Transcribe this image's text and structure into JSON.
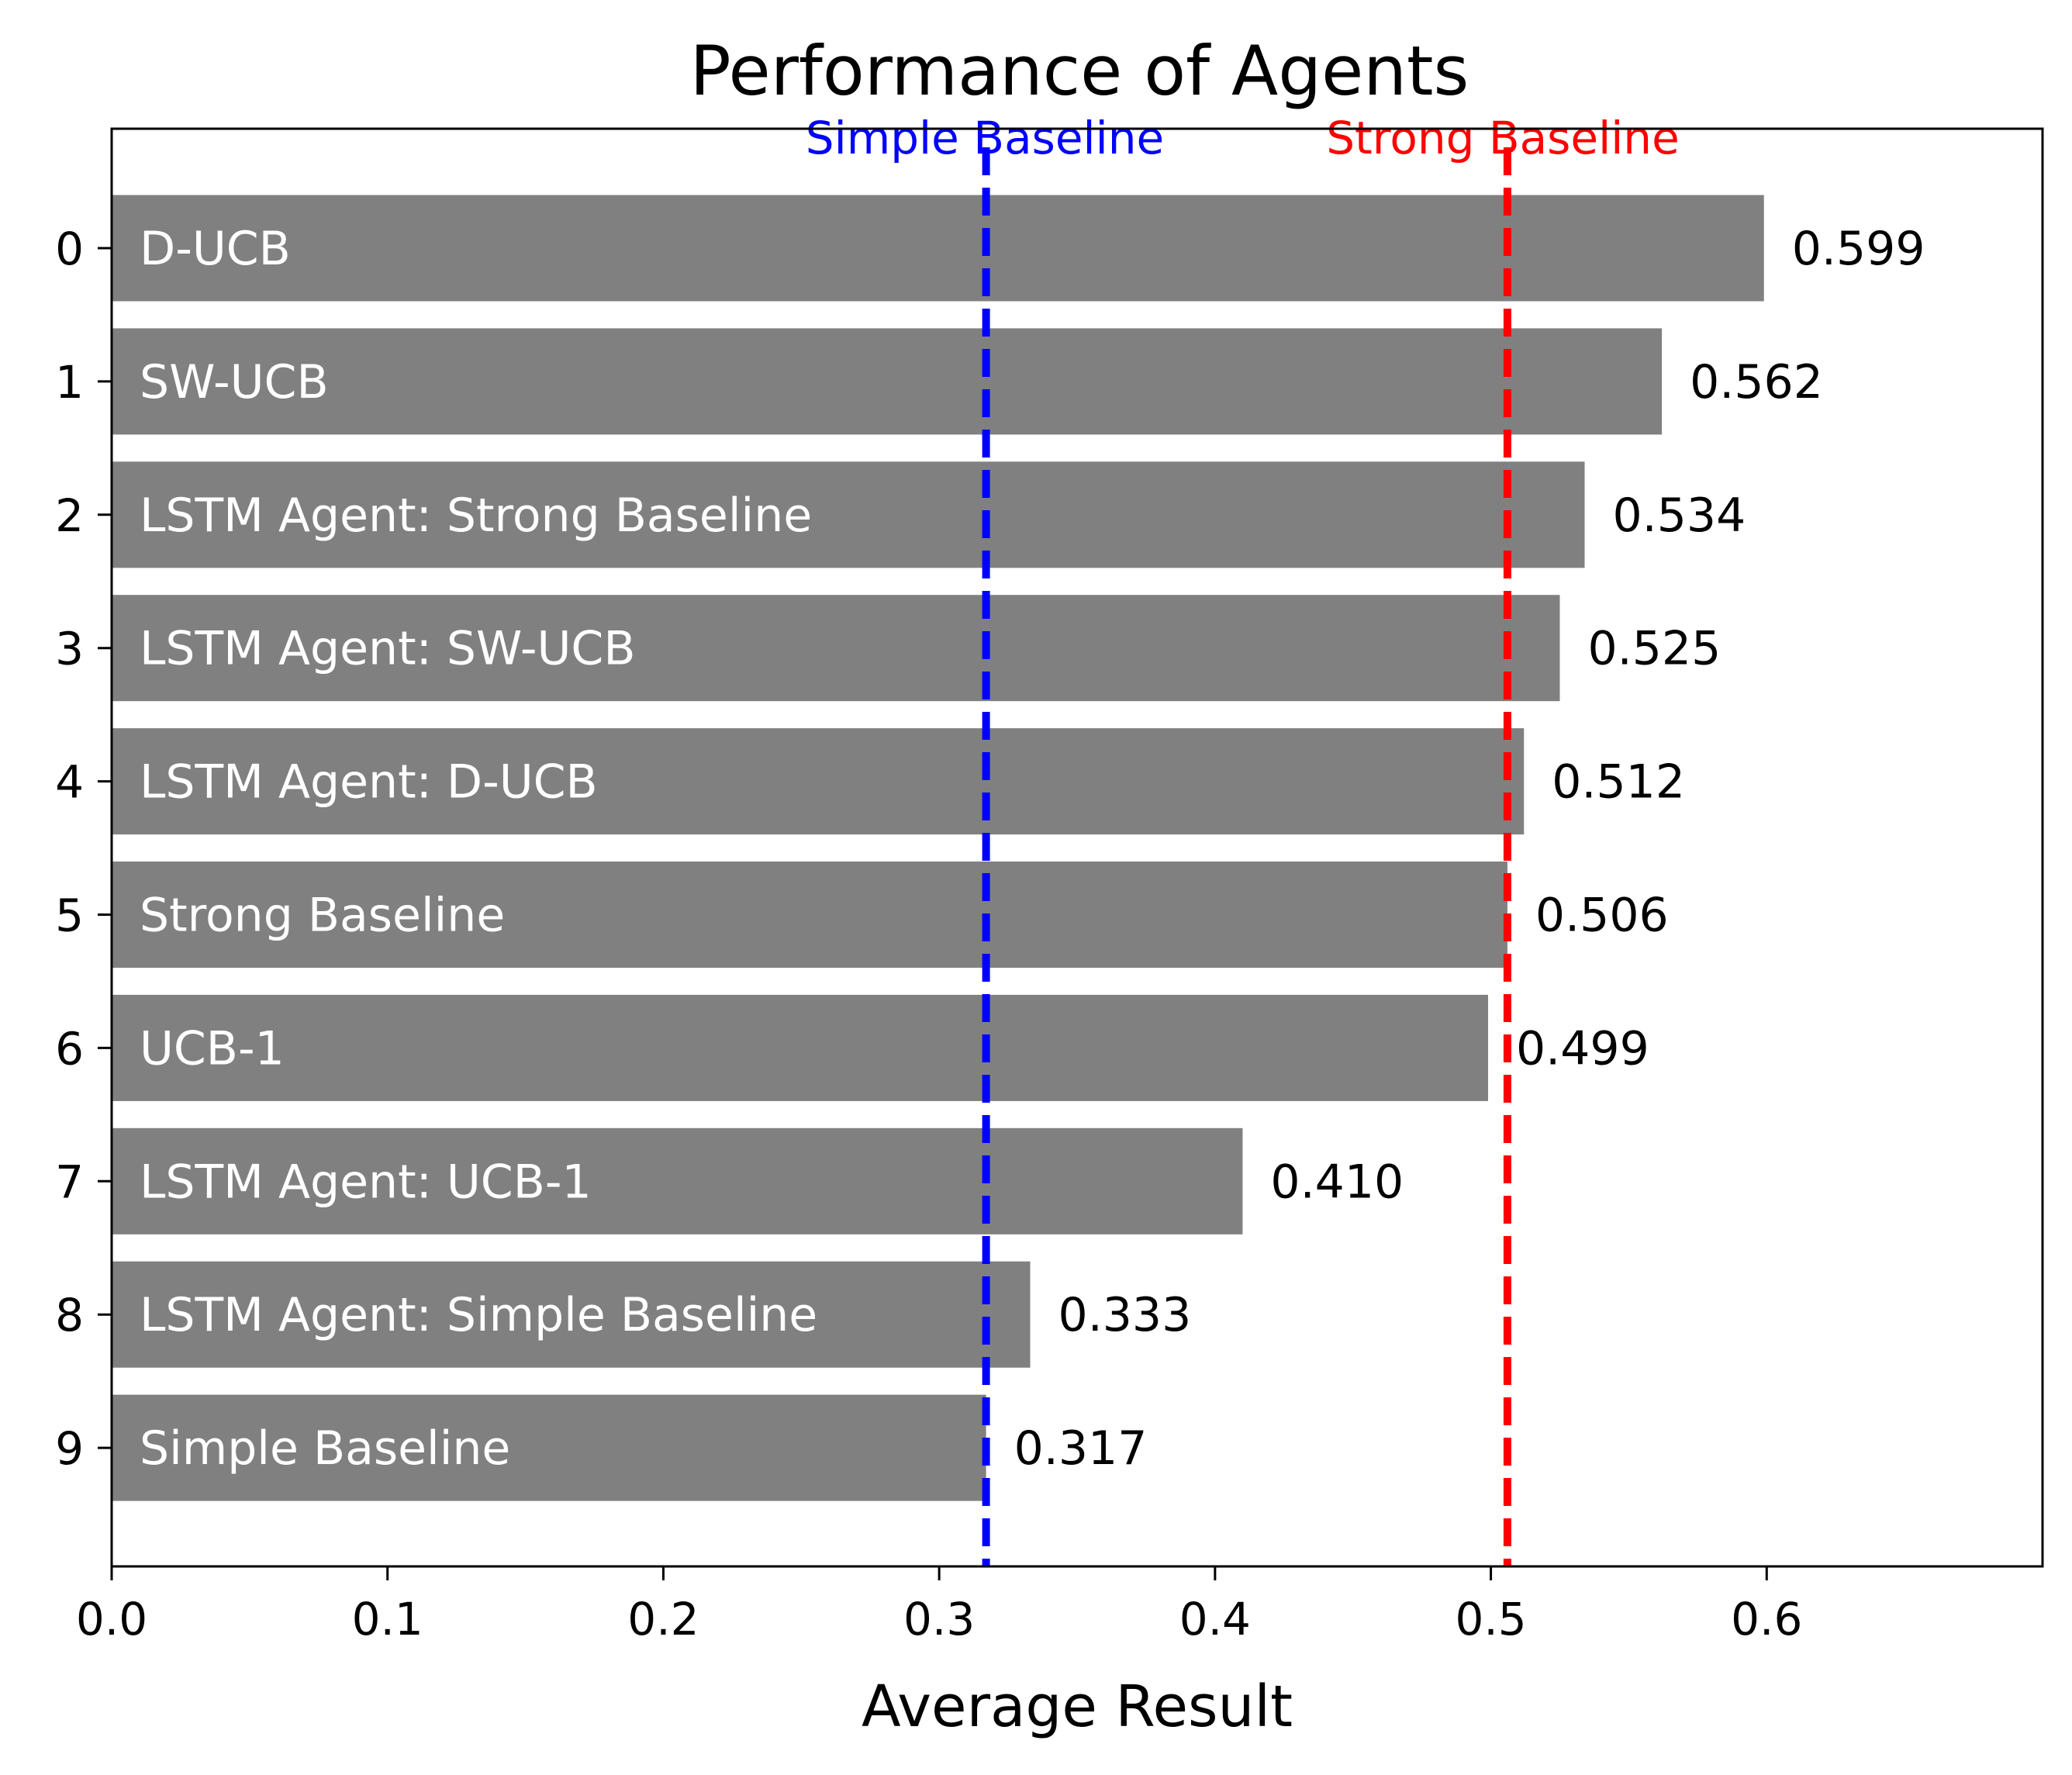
{
  "chart_data": {
    "type": "bar",
    "orientation": "horizontal",
    "title": "Performance of Agents",
    "xlabel": "Average Result",
    "ylabel": "",
    "xlim": [
      0,
      0.7
    ],
    "x_ticks": [
      "0.0",
      "0.1",
      "0.2",
      "0.3",
      "0.4",
      "0.5",
      "0.6"
    ],
    "y_ticks": [
      "0",
      "1",
      "2",
      "3",
      "4",
      "5",
      "6",
      "7",
      "8",
      "9"
    ],
    "categories": [
      "D-UCB",
      "SW-UCB",
      "LSTM Agent: Strong Baseline",
      "LSTM Agent: SW-UCB",
      "LSTM Agent: D-UCB",
      "Strong Baseline",
      "UCB-1",
      "LSTM Agent: UCB-1",
      "LSTM Agent: Simple Baseline",
      "Simple Baseline"
    ],
    "values": [
      0.599,
      0.562,
      0.534,
      0.525,
      0.512,
      0.506,
      0.499,
      0.41,
      0.333,
      0.317
    ],
    "value_labels": [
      "0.599",
      "0.562",
      "0.534",
      "0.525",
      "0.512",
      "0.506",
      "0.499",
      "0.410",
      "0.333",
      "0.317"
    ],
    "bar_color": "#808080",
    "reference_lines": [
      {
        "label": "Simple Baseline",
        "value": 0.317,
        "color": "#0000ff",
        "style": "dashed"
      },
      {
        "label": "Strong Baseline",
        "value": 0.506,
        "color": "#ff0000",
        "style": "dashed"
      }
    ],
    "grid": false,
    "legend": "none"
  }
}
